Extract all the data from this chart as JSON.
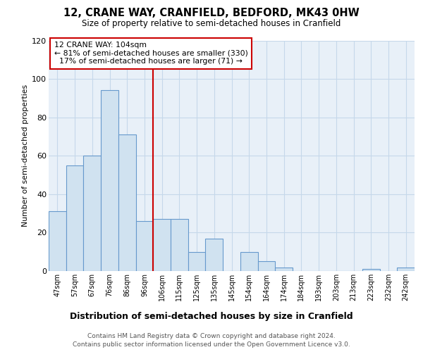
{
  "title": "12, CRANE WAY, CRANFIELD, BEDFORD, MK43 0HW",
  "subtitle": "Size of property relative to semi-detached houses in Cranfield",
  "xlabel": "Distribution of semi-detached houses by size in Cranfield",
  "ylabel": "Number of semi-detached properties",
  "bar_labels": [
    "47sqm",
    "57sqm",
    "67sqm",
    "76sqm",
    "86sqm",
    "96sqm",
    "106sqm",
    "115sqm",
    "125sqm",
    "135sqm",
    "145sqm",
    "154sqm",
    "164sqm",
    "174sqm",
    "184sqm",
    "193sqm",
    "203sqm",
    "213sqm",
    "223sqm",
    "232sqm",
    "242sqm"
  ],
  "bar_values": [
    31,
    55,
    60,
    94,
    71,
    26,
    27,
    27,
    10,
    17,
    0,
    10,
    5,
    2,
    0,
    0,
    0,
    0,
    1,
    0,
    2
  ],
  "bar_color": "#d0e2f0",
  "bar_edge_color": "#6699cc",
  "property_bin_index": 6,
  "property_value": "104sqm",
  "pct_smaller": 81,
  "n_smaller": 330,
  "pct_larger": 17,
  "n_larger": 71,
  "line_color": "#cc0000",
  "ylim": [
    0,
    120
  ],
  "yticks": [
    0,
    20,
    40,
    60,
    80,
    100,
    120
  ],
  "grid_color": "#c5d8ea",
  "bg_color": "#e8f0f8",
  "footer1": "Contains HM Land Registry data © Crown copyright and database right 2024.",
  "footer2": "Contains public sector information licensed under the Open Government Licence v3.0."
}
